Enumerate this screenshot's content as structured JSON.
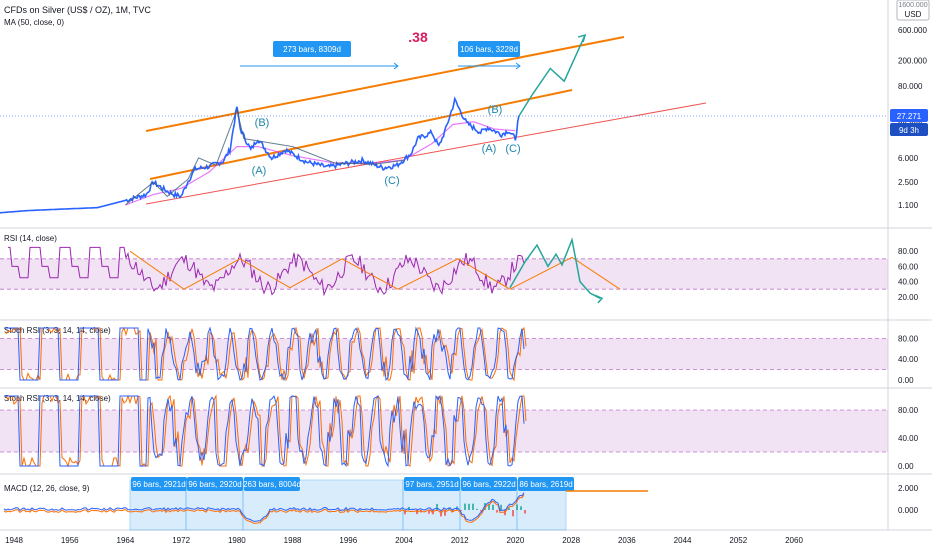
{
  "header": {
    "symbol_title": "CFDs on Silver (US$ / OZ), 1M, TVC",
    "ma_label": "MA (50, close, 0)"
  },
  "currency": {
    "top_value": "1600.000",
    "unit": "USD"
  },
  "price_badge": {
    "value": "27.271",
    "countdown": "9d 3h"
  },
  "fib_label": ".38",
  "colors": {
    "price": "#2962ff",
    "ma": "#e040fb",
    "channel": "#f57c00",
    "support": "#ef5350",
    "wave": "#26a69a",
    "rsi": "#9c27b0",
    "stoch_k": "#2962ff",
    "stoch_d": "#ff6d00",
    "band_fill": "#e1bee7",
    "measure": "#2196f3"
  },
  "measure_labels": {
    "upper_left": "273 bars, 8309d",
    "upper_right": "106 bars, 3228d",
    "macd": [
      "96 bars, 2921d",
      "96 bars, 2920d",
      "263 bars, 8004d",
      "97 bars, 2951d",
      "96 bars, 2922d",
      "86 bars, 2619d"
    ]
  },
  "wave_labels": [
    "(B)",
    "(A)",
    "(C)",
    "(B)",
    "(A)",
    "(C)"
  ],
  "panes": {
    "rsi": {
      "label": "RSI (14, close)",
      "ticks": [
        "80.00",
        "60.00",
        "40.00",
        "20.00"
      ]
    },
    "stoch1": {
      "label": "Stoch RSI (3, 3, 14, 14, close)",
      "ticks": [
        "80.00",
        "40.00",
        "0.00"
      ]
    },
    "stoch2": {
      "label": "Stoch RSI (3, 3, 14, 14, close)",
      "ticks": [
        "80.00",
        "40.00",
        "0.00"
      ]
    },
    "macd": {
      "label": "MACD (12, 26, close, 9)",
      "ticks": [
        "2.000",
        "0.000"
      ]
    }
  },
  "chart_data": {
    "type": "line",
    "title": "CFDs on Silver (US$ / OZ), 1M, TVC",
    "y_scale": "log",
    "y_ticks": [
      "600.000",
      "200.000",
      "80.000",
      "20.000",
      "6.000",
      "2.500",
      "1.100"
    ],
    "x_ticks": [
      "1948",
      "1956",
      "1964",
      "1972",
      "1980",
      "1988",
      "1996",
      "2004",
      "2012",
      "2020",
      "2028",
      "2036",
      "2044",
      "2052",
      "2060"
    ],
    "xlim": [
      1944,
      2064
    ],
    "ylim": [
      0.7,
      1600
    ],
    "last_price": 27.271,
    "series": [
      {
        "name": "",
        "x": [
          1944,
          1950,
          1955,
          1960,
          1964,
          1967,
          1968,
          1970,
          1971,
          1972,
          1973,
          1974,
          1976,
          1978,
          1979,
          1980,
          1980.5,
          1982,
          1983,
          1985,
          1987,
          1990,
          1993,
          1998,
          2001,
          2003,
          2005,
          2006,
          2008,
          2009,
          2010,
          2011.3,
          2012,
          2013,
          2015,
          2016,
          2018,
          2019,
          2020,
          2020.5
        ],
        "values": [
          0.8,
          0.9,
          0.95,
          1.0,
          1.3,
          1.6,
          2.5,
          1.8,
          1.6,
          1.5,
          2.6,
          4.0,
          4.4,
          5.3,
          8.0,
          38.0,
          17.0,
          8.0,
          12.0,
          6.0,
          8.0,
          5.2,
          4.3,
          5.5,
          4.2,
          4.6,
          7.0,
          12.0,
          15.0,
          9.0,
          17.0,
          48.0,
          34.0,
          21.0,
          15.0,
          18.0,
          14.0,
          16.0,
          12.0,
          27.271
        ]
      }
    ]
  }
}
